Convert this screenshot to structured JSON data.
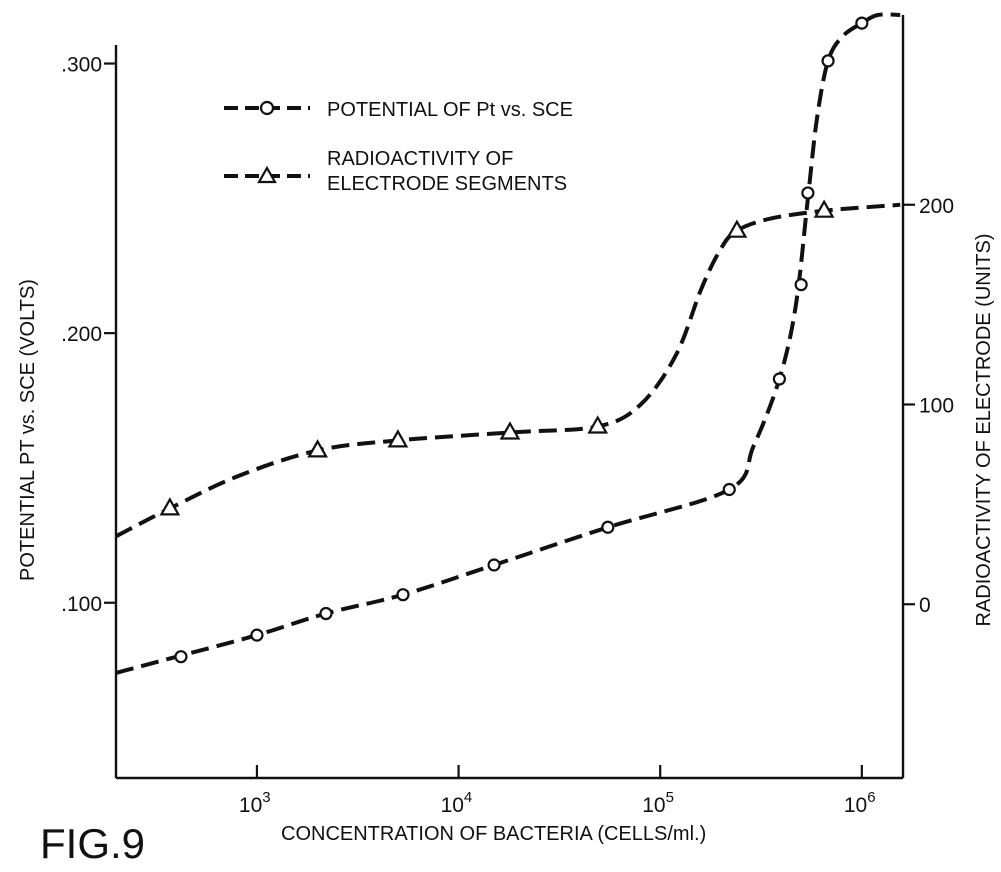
{
  "chart_data": {
    "type": "line",
    "figure_label": "FIG.9",
    "xlabel": "CONCENTRATION OF BACTERIA (CELLS/ml.)",
    "ylabel_left": "POTENTIAL PT vs. SCE (VOLTS)",
    "ylabel_right": "RADIOACTIVITY OF ELECTRODE (UNITS)",
    "x_scale": "log",
    "xlim": [
      200,
      1600000
    ],
    "x_ticks": [
      {
        "value": 1000,
        "base": "10",
        "exp": "3"
      },
      {
        "value": 10000,
        "base": "10",
        "exp": "4"
      },
      {
        "value": 100000,
        "base": "10",
        "exp": "5"
      },
      {
        "value": 1000000,
        "base": "10",
        "exp": "6"
      }
    ],
    "ylim_left": [
      0.035,
      0.318
    ],
    "left_ticks": [
      {
        "value": 0.1,
        "label": ".100"
      },
      {
        "value": 0.2,
        "label": ".200"
      },
      {
        "value": 0.3,
        "label": ".300"
      }
    ],
    "ylim_right": [
      -87,
      295
    ],
    "right_ticks": [
      {
        "value": 0,
        "label": "0"
      },
      {
        "value": 100,
        "label": "100"
      },
      {
        "value": 200,
        "label": "200"
      }
    ],
    "grid": false,
    "legend_position": "top-left",
    "series": [
      {
        "name": "POTENTIAL OF Pt vs. SCE",
        "marker": "circle",
        "axis": "left",
        "curve": [
          [
            200,
            0.074
          ],
          [
            400,
            0.08
          ],
          [
            1000,
            0.088
          ],
          [
            2200,
            0.096
          ],
          [
            5300,
            0.103
          ],
          [
            15000,
            0.114
          ],
          [
            55000,
            0.128
          ],
          [
            220000,
            0.142
          ],
          [
            290000,
            0.158
          ],
          [
            390000,
            0.183
          ],
          [
            470000,
            0.21
          ],
          [
            540000,
            0.25
          ],
          [
            600000,
            0.28
          ],
          [
            680000,
            0.301
          ],
          [
            800000,
            0.31
          ],
          [
            1000000,
            0.315
          ],
          [
            1200000,
            0.318
          ],
          [
            1550000,
            0.318
          ]
        ],
        "points": [
          [
            420,
            0.08
          ],
          [
            1000,
            0.088
          ],
          [
            2200,
            0.096
          ],
          [
            5300,
            0.103
          ],
          [
            15000,
            0.114
          ],
          [
            55000,
            0.128
          ],
          [
            220000,
            0.142
          ],
          [
            390000,
            0.183
          ],
          [
            500000,
            0.218
          ],
          [
            540000,
            0.252
          ],
          [
            680000,
            0.301
          ],
          [
            1000000,
            0.315
          ]
        ]
      },
      {
        "name": "RADIOACTIVITY OF ELECTRODE SEGMENTS",
        "marker": "triangle",
        "axis": "right",
        "curve": [
          [
            200,
            34
          ],
          [
            370,
            48
          ],
          [
            800,
            64
          ],
          [
            2000,
            77
          ],
          [
            5000,
            82
          ],
          [
            18000,
            86
          ],
          [
            49000,
            89
          ],
          [
            80000,
            100
          ],
          [
            120000,
            125
          ],
          [
            160000,
            158
          ],
          [
            200000,
            178
          ],
          [
            240000,
            187
          ],
          [
            350000,
            193
          ],
          [
            650000,
            197
          ],
          [
            1550000,
            200
          ]
        ],
        "points": [
          [
            370,
            48
          ],
          [
            2000,
            77
          ],
          [
            5000,
            82
          ],
          [
            18000,
            86
          ],
          [
            49000,
            89
          ],
          [
            240000,
            187
          ],
          [
            650000,
            197
          ]
        ]
      }
    ]
  }
}
